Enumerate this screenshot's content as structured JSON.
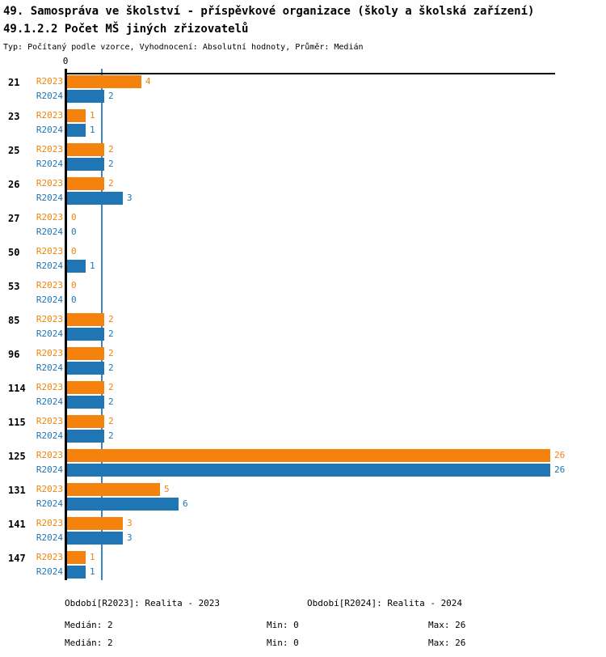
{
  "header": {
    "title": "49. Samospráva ve školství - příspěvkové organizace (školy a školská zařízení)",
    "subtitle": "49.1.2.2 Počet MŠ jiných zřizovatelů",
    "meta": "Typ: Počítaný podle vzorce, Vyhodnocení: Absolutní hodnoty, Průměr: Medián"
  },
  "chart_data": {
    "type": "bar",
    "orientation": "horizontal",
    "title": "49.1.2.2 Počet MŠ jiných zřizovatelů",
    "axis_zero_label": "0",
    "xlim": [
      0,
      26.3
    ],
    "grid": false,
    "median_reference_line": 2,
    "categories": [
      "21",
      "23",
      "25",
      "26",
      "27",
      "50",
      "53",
      "85",
      "96",
      "114",
      "115",
      "125",
      "131",
      "141",
      "147"
    ],
    "series": [
      {
        "name": "R2023",
        "color": "#F5820D",
        "values": [
          4,
          1,
          2,
          2,
          0,
          0,
          0,
          2,
          2,
          2,
          2,
          26,
          5,
          3,
          1
        ]
      },
      {
        "name": "R2024",
        "color": "#2076B5",
        "values": [
          2,
          1,
          2,
          3,
          0,
          1,
          0,
          2,
          2,
          2,
          2,
          26,
          6,
          3,
          1
        ]
      }
    ]
  },
  "colors": {
    "r2023": "#F5820D",
    "r2024": "#2076B5",
    "axis": "#000000",
    "median_line": "#3A87C0"
  },
  "legend": {
    "r2023": "Období[R2023]: Realita - 2023",
    "r2024": "Období[R2024]: Realita - 2024"
  },
  "stats": {
    "r2023": {
      "median": "Medián: 2",
      "min": "Min: 0",
      "max": "Max: 26"
    },
    "r2024": {
      "median": "Medián: 2",
      "min": "Min: 0",
      "max": "Max: 26"
    }
  }
}
